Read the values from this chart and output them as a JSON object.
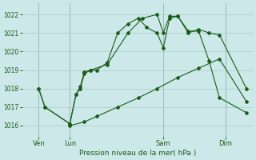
{
  "background_color": "#cce8e8",
  "grid_color": "#aacaca",
  "line_color": "#1a5c1a",
  "marker_color": "#1a5c1a",
  "title": "Pression niveau de la mer( hPa )",
  "ylabel_values": [
    1016,
    1017,
    1018,
    1019,
    1020,
    1021,
    1022
  ],
  "ylim": [
    1015.4,
    1022.6
  ],
  "xlim": [
    -3,
    108
  ],
  "x_tick_positions": [
    5,
    20,
    65,
    95
  ],
  "x_tick_labels": [
    "Ven",
    "Lun",
    "Sam",
    "Dim"
  ],
  "vline_positions": [
    5,
    20,
    65,
    95
  ],
  "series1": {
    "x": [
      5,
      8,
      20,
      23,
      25,
      27,
      30,
      33,
      38,
      43,
      48,
      53,
      57,
      62,
      65,
      68,
      72,
      77,
      82,
      87,
      92,
      105
    ],
    "y": [
      1018.0,
      1017.0,
      1016.1,
      1017.7,
      1018.1,
      1018.9,
      1019.0,
      1019.0,
      1019.4,
      1021.0,
      1021.5,
      1021.8,
      1021.3,
      1021.0,
      1020.2,
      1021.8,
      1021.9,
      1021.1,
      1021.1,
      1019.5,
      1017.5,
      1016.7
    ]
  },
  "series2": {
    "x": [
      20,
      27,
      33,
      43,
      53,
      62,
      72,
      82,
      92,
      105
    ],
    "y": [
      1016.0,
      1016.2,
      1016.5,
      1017.0,
      1017.5,
      1018.0,
      1018.6,
      1019.1,
      1019.6,
      1017.3
    ]
  },
  "series3": {
    "x": [
      5,
      8,
      20,
      23,
      25,
      27,
      30,
      38,
      48,
      55,
      62,
      65,
      68,
      72,
      77,
      82,
      87,
      92,
      105
    ],
    "y": [
      1018.0,
      1017.0,
      1016.1,
      1017.7,
      1018.0,
      1018.8,
      1019.0,
      1019.3,
      1021.0,
      1021.8,
      1022.0,
      1021.0,
      1021.9,
      1021.9,
      1021.0,
      1021.2,
      1021.0,
      1020.9,
      1018.0
    ]
  }
}
